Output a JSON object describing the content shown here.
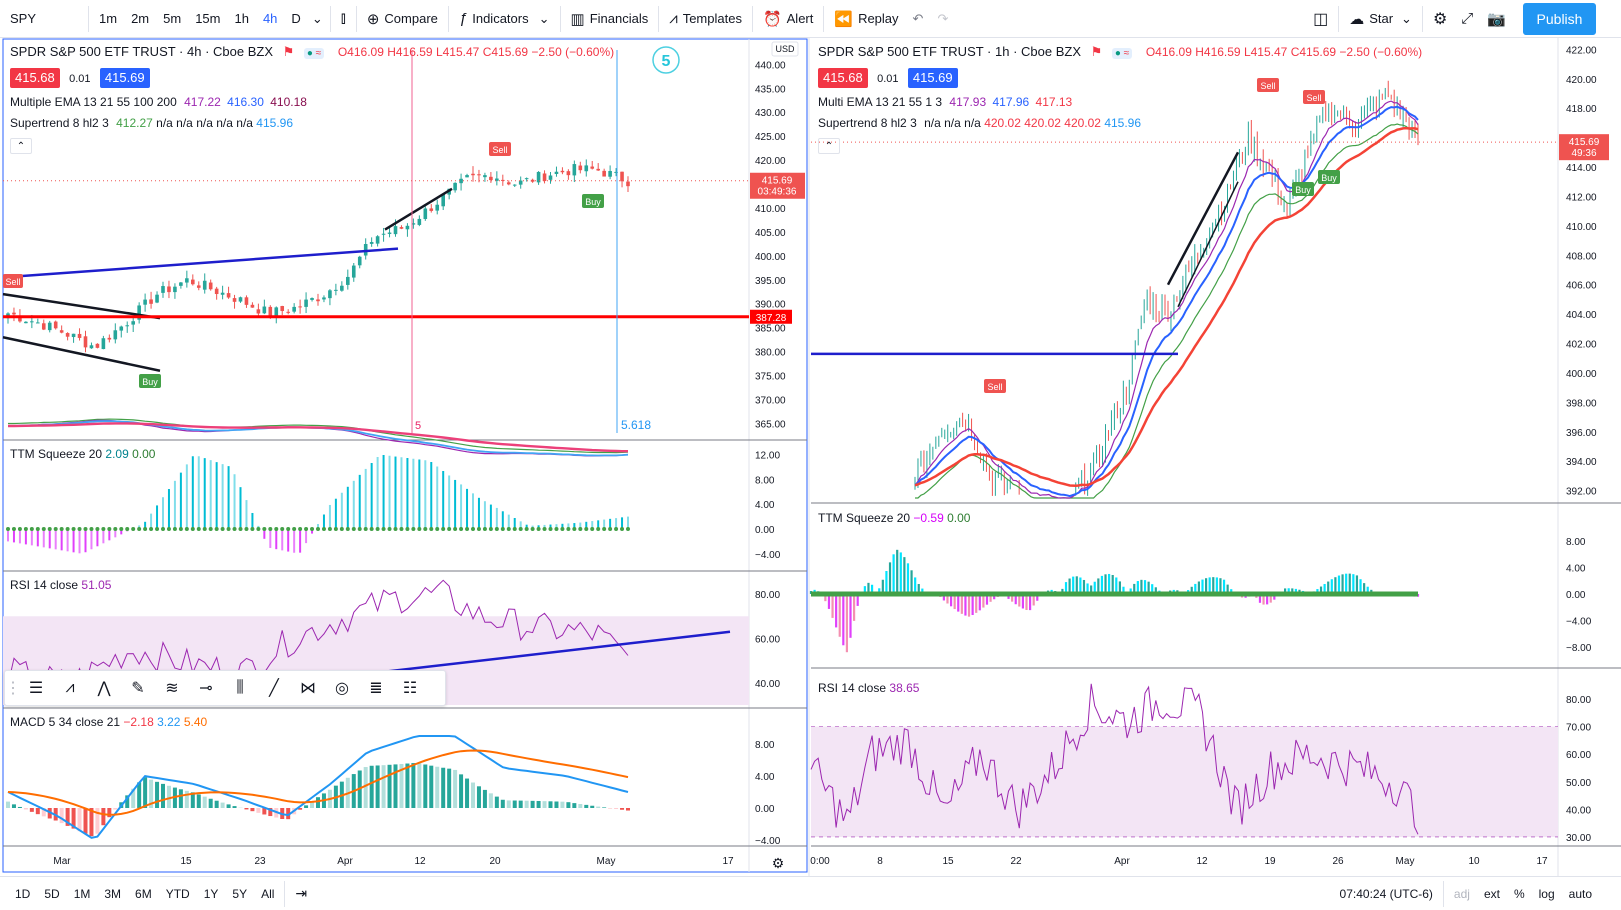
{
  "topbar": {
    "symbol": "SPY",
    "intervals": [
      "1m",
      "2m",
      "5m",
      "15m",
      "1h",
      "4h",
      "D"
    ],
    "active_interval": "4h",
    "compare": "Compare",
    "indicators": "Indicators",
    "financials": "Financials",
    "templates": "Templates",
    "alert": "Alert",
    "replay": "Replay",
    "star": "Star",
    "publish": "Publish"
  },
  "left": {
    "title": "SPDR S&P 500 ETF TRUST · 4h · Cboe BZX",
    "ohlc": {
      "o": "O416.09",
      "h": "H416.59",
      "l": "L415.47",
      "c": "C415.69",
      "chg": "−2.50 (−0.60%)"
    },
    "bid": "415.68",
    "spread": "0.01",
    "ask": "415.69",
    "ema_name": "Multiple EMA 13 21 55 100 200",
    "ema_vals": [
      "417.22",
      "416.30",
      "410.18"
    ],
    "st_name": "Supertrend 8 hl2 3",
    "st_vals": [
      "412.27",
      "n/a",
      "n/a",
      "n/a",
      "n/a",
      "n/a",
      "415.96"
    ],
    "currency": "USD",
    "price_axis": [
      "440.00",
      "435.00",
      "430.00",
      "425.00",
      "420.00",
      "415.00",
      "410.00",
      "405.00",
      "400.00",
      "395.00",
      "390.00",
      "385.00",
      "380.00",
      "375.00",
      "370.00",
      "365.00"
    ],
    "last_price": "415.69",
    "countdown": "03:49:36",
    "hline_price": "387.28",
    "fib_label": "5.618",
    "vline_label": "5",
    "wave_circle": "5",
    "time_axis": [
      "Mar",
      "15",
      "23",
      "Apr",
      "12",
      "20",
      "May",
      "17"
    ],
    "ttm_name": "TTM Squeeze 20",
    "ttm_vals": [
      "2.09",
      "0.00"
    ],
    "ttm_axis": [
      "12.00",
      "8.00",
      "4.00",
      "0.00",
      "−4.00"
    ],
    "rsi_name": "RSI 14 close",
    "rsi_val": "51.05",
    "rsi_axis": [
      "80.00",
      "60.00",
      "40.00"
    ],
    "macd_name": "MACD 5 34 close 21",
    "macd_vals": [
      "−2.18",
      "3.22",
      "5.40"
    ],
    "macd_axis": [
      "8.00",
      "4.00",
      "0.00",
      "−4.00"
    ],
    "labels": {
      "sell": "Sell",
      "buy": "Buy"
    }
  },
  "right": {
    "title": "SPDR S&P 500 ETF TRUST · 1h · Cboe BZX",
    "ohlc": {
      "o": "O416.09",
      "h": "H416.59",
      "l": "L415.47",
      "c": "C415.69",
      "chg": "−2.50 (−0.60%)"
    },
    "bid": "415.68",
    "spread": "0.01",
    "ask": "415.69",
    "ema_name": "Multi EMA 13 21 55 1 3",
    "ema_vals": [
      "417.93",
      "417.96",
      "417.13"
    ],
    "st_name": "Supertrend 8 hl2 3",
    "st_vals": [
      "n/a",
      "n/a",
      "n/a",
      "420.02",
      "420.02",
      "420.02",
      "415.96"
    ],
    "price_axis": [
      "422.00",
      "420.00",
      "418.00",
      "416.00",
      "414.00",
      "412.00",
      "410.00",
      "408.00",
      "406.00",
      "404.00",
      "402.00",
      "400.00",
      "398.00",
      "396.00",
      "394.00",
      "392.00"
    ],
    "last_price": "415.69",
    "countdown": "49:36",
    "time_axis": [
      "0:00",
      "8",
      "15",
      "22",
      "Apr",
      "12",
      "19",
      "26",
      "May",
      "10",
      "17"
    ],
    "ttm_name": "TTM Squeeze 20",
    "ttm_vals": [
      "−0.59",
      "0.00"
    ],
    "ttm_axis": [
      "8.00",
      "4.00",
      "0.00",
      "−4.00",
      "−8.00"
    ],
    "rsi_name": "RSI 14 close",
    "rsi_val": "38.65",
    "rsi_axis": [
      "80.00",
      "70.00",
      "60.00",
      "50.00",
      "40.00",
      "30.00"
    ],
    "labels": {
      "sell": "Sell",
      "buy": "Buy"
    }
  },
  "bottombar": {
    "ranges": [
      "1D",
      "5D",
      "1M",
      "3M",
      "6M",
      "YTD",
      "1Y",
      "5Y",
      "All"
    ],
    "time": "07:40:24 (UTC-6)",
    "adj": "adj",
    "ext": "ext",
    "pct": "%",
    "log": "log",
    "auto": "auto"
  },
  "colors": {
    "accent": "#2962ff",
    "up": "#26a69a",
    "down": "#ef5350",
    "publish": "#2196f3",
    "ema_purple": "#9c27b0",
    "ema_blue": "#2962ff",
    "ema_red": "#f44336"
  }
}
